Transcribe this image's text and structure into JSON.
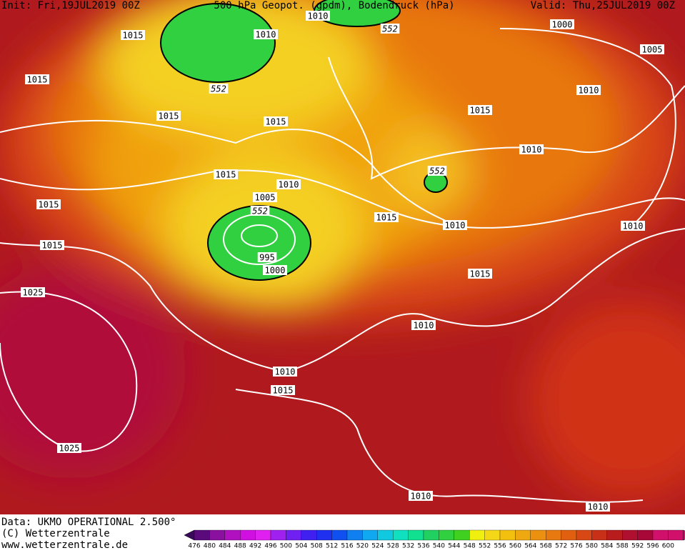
{
  "header": {
    "init": "Init: Fri,19JUL2019 00Z",
    "title": "500 hPa Geopot. (gpdm), Bodendruck (hPa)",
    "valid": "Valid: Thu,25JUL2019 00Z"
  },
  "isobar_labels": [
    "1010",
    "1015",
    "1010",
    "552",
    "1000",
    "1005",
    "1015",
    "552",
    "1010",
    "1015",
    "1015",
    "1015",
    "1010",
    "552",
    "1015",
    "1010",
    "1005",
    "1015",
    "552",
    "1015",
    "1010",
    "1010",
    "1015",
    "995",
    "1000",
    "1015",
    "1025",
    "1010",
    "1010",
    "1015",
    "1025",
    "1010",
    "1010"
  ],
  "footer": {
    "data": "Data: UKMO OPERATIONAL 2.500°",
    "copyright": "(C) Wetterzentrale",
    "url": "www.wetterzentrale.de"
  },
  "scale_labels": [
    476,
    480,
    484,
    488,
    492,
    496,
    500,
    504,
    508,
    512,
    516,
    520,
    524,
    528,
    532,
    536,
    540,
    544,
    548,
    552,
    556,
    560,
    564,
    568,
    572,
    576,
    580,
    584,
    588,
    592,
    596,
    600
  ]
}
